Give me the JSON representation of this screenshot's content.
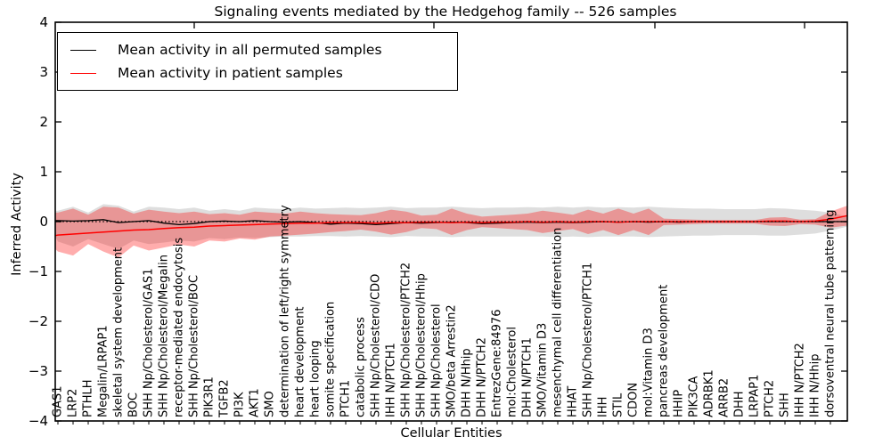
{
  "chart_data": {
    "type": "line",
    "title": "Signaling events mediated by the Hedgehog family -- 526 samples",
    "xlabel": "Cellular Entities",
    "ylabel": "Inferred Activity",
    "ylim": [
      -4,
      4
    ],
    "yticks": [
      4,
      3,
      2,
      1,
      0,
      -1,
      -2,
      -3,
      -4
    ],
    "ytick_labels": [
      "4",
      "3",
      "2",
      "1",
      "0",
      "−1",
      "−2",
      "−3",
      "−4"
    ],
    "zero_reference_line": 0,
    "grid": false,
    "legend_position": "upper left",
    "x_includes_axis_edges": true,
    "categories": [
      "GAS1",
      "LRP2",
      "PTHLH",
      "Megalin/LRPAP1",
      "skeletal system development",
      "BOC",
      "SHH Np/Cholesterol/GAS1",
      "SHH Np/Cholesterol/Megalin",
      "receptor-mediated endocytosis",
      "SHH Np/Cholesterol/BOC",
      "PIK3R1",
      "TGFB2",
      "PI3K",
      "AKT1",
      "SMO",
      "determination of left/right symmetry",
      "heart development",
      "heart looping",
      "somite specification",
      "PTCH1",
      "catabolic process",
      "SHH Np/Cholesterol/CDO",
      "IHH N/PTCH1",
      "SHH Np/Cholesterol/PTCH2",
      "SHH Np/Cholesterol/Hhip",
      "SHH Np/Cholesterol",
      "SMO/beta Arrestin2",
      "DHH N/Hhip",
      "DHH N/PTCH2",
      "EntrezGene:84976",
      "mol:Cholesterol",
      "DHH N/PTCH1",
      "SMO/Vitamin D3",
      "mesenchymal cell differentiation",
      "HHAT",
      "SHH Np/Cholesterol/PTCH1",
      "IHH",
      "STIL",
      "CDON",
      "mol:Vitamin D3",
      "pancreas development",
      "HHIP",
      "PIK3CA",
      "ADRBK1",
      "ARRB2",
      "DHH",
      "LRPAP1",
      "PTCH2",
      "SHH",
      "IHH N/PTCH2",
      "IHH N/Hhip",
      "dorsoventral neural tube patterning"
    ],
    "series": [
      {
        "name": "Mean activity in all permuted samples",
        "kind": "mean-line-with-band",
        "color": "#000000",
        "band_color": "#d8d8d8",
        "band_opacity": 0.85,
        "values": [
          0.02,
          0.02,
          0.01,
          0.02,
          0.04,
          -0.02,
          0,
          0.02,
          -0.03,
          -0.06,
          -0.04,
          0,
          0.01,
          0,
          0.02,
          0,
          -0.01,
          0,
          -0.02,
          -0.05,
          -0.03,
          -0.04,
          -0.06,
          -0.04,
          -0.02,
          -0.03,
          -0.02,
          -0.01,
          -0.02,
          -0.04,
          -0.03,
          -0.02,
          -0.01,
          -0.02,
          -0.01,
          -0.02,
          -0.01,
          0,
          -0.01,
          0,
          -0.01,
          0,
          -0.01,
          0,
          0,
          0,
          0,
          0,
          0,
          0,
          0,
          0,
          0,
          0
        ],
        "band_upper": [
          0.22,
          0.22,
          0.3,
          0.18,
          0.35,
          0.32,
          0.2,
          0.3,
          0.28,
          0.25,
          0.28,
          0.22,
          0.25,
          0.22,
          0.28,
          0.26,
          0.25,
          0.28,
          0.26,
          0.27,
          0.28,
          0.27,
          0.28,
          0.3,
          0.27,
          0.28,
          0.28,
          0.3,
          0.28,
          0.27,
          0.28,
          0.28,
          0.29,
          0.28,
          0.3,
          0.28,
          0.3,
          0.28,
          0.29,
          0.28,
          0.3,
          0.28,
          0.27,
          0.26,
          0.26,
          0.25,
          0.25,
          0.25,
          0.27,
          0.26,
          0.24,
          0.22,
          0.18,
          0.1
        ],
        "band_lower": [
          -0.3,
          -0.4,
          -0.5,
          -0.35,
          -0.45,
          -0.55,
          -0.38,
          -0.45,
          -0.42,
          -0.38,
          -0.4,
          -0.33,
          -0.35,
          -0.32,
          -0.33,
          -0.31,
          -0.3,
          -0.3,
          -0.29,
          -0.29,
          -0.3,
          -0.29,
          -0.3,
          -0.31,
          -0.29,
          -0.3,
          -0.3,
          -0.31,
          -0.3,
          -0.3,
          -0.3,
          -0.3,
          -0.3,
          -0.3,
          -0.31,
          -0.3,
          -0.31,
          -0.3,
          -0.3,
          -0.3,
          -0.31,
          -0.3,
          -0.29,
          -0.28,
          -0.28,
          -0.27,
          -0.27,
          -0.27,
          -0.28,
          -0.28,
          -0.26,
          -0.24,
          -0.18,
          -0.1
        ]
      },
      {
        "name": "Mean activity in patient samples",
        "kind": "mean-line-with-band",
        "color": "#ff0000",
        "band_color": "#ff0000",
        "band_opacity": 0.32,
        "values": [
          -0.28,
          -0.27,
          -0.25,
          -0.23,
          -0.21,
          -0.19,
          -0.17,
          -0.16,
          -0.14,
          -0.12,
          -0.11,
          -0.09,
          -0.08,
          -0.07,
          -0.06,
          -0.05,
          -0.04,
          -0.03,
          -0.03,
          -0.02,
          -0.02,
          -0.02,
          -0.03,
          -0.02,
          -0.02,
          -0.01,
          -0.01,
          -0.02,
          -0.01,
          -0.02,
          -0.01,
          -0.01,
          0,
          -0.01,
          0,
          -0.01,
          0,
          0,
          -0.01,
          0,
          0,
          0,
          0,
          0,
          0,
          0,
          0,
          0,
          0.01,
          0.01,
          0,
          0.01,
          0.05,
          0.12
        ],
        "band_upper": [
          0.18,
          0.18,
          0.26,
          0.14,
          0.3,
          0.28,
          0.16,
          0.24,
          0.2,
          0.17,
          0.2,
          0.15,
          0.17,
          0.14,
          0.2,
          0.18,
          0.16,
          0.2,
          0.17,
          0.15,
          0.14,
          0.13,
          0.17,
          0.24,
          0.2,
          0.12,
          0.14,
          0.26,
          0.16,
          0.1,
          0.12,
          0.14,
          0.16,
          0.22,
          0.18,
          0.14,
          0.24,
          0.16,
          0.26,
          0.16,
          0.26,
          0.06,
          0.05,
          0.04,
          0.03,
          0.03,
          0.03,
          0.03,
          0.08,
          0.09,
          0.04,
          0.05,
          0.2,
          0.32
        ],
        "band_lower": [
          -0.55,
          -0.6,
          -0.68,
          -0.45,
          -0.6,
          -0.72,
          -0.48,
          -0.58,
          -0.52,
          -0.46,
          -0.5,
          -0.38,
          -0.4,
          -0.34,
          -0.36,
          -0.3,
          -0.28,
          -0.26,
          -0.24,
          -0.21,
          -0.19,
          -0.16,
          -0.2,
          -0.26,
          -0.21,
          -0.13,
          -0.15,
          -0.27,
          -0.17,
          -0.11,
          -0.13,
          -0.15,
          -0.17,
          -0.23,
          -0.19,
          -0.15,
          -0.25,
          -0.17,
          -0.27,
          -0.17,
          -0.27,
          -0.07,
          -0.06,
          -0.05,
          -0.04,
          -0.04,
          -0.04,
          -0.04,
          -0.08,
          -0.09,
          -0.05,
          -0.06,
          -0.12,
          -0.08
        ]
      }
    ]
  }
}
